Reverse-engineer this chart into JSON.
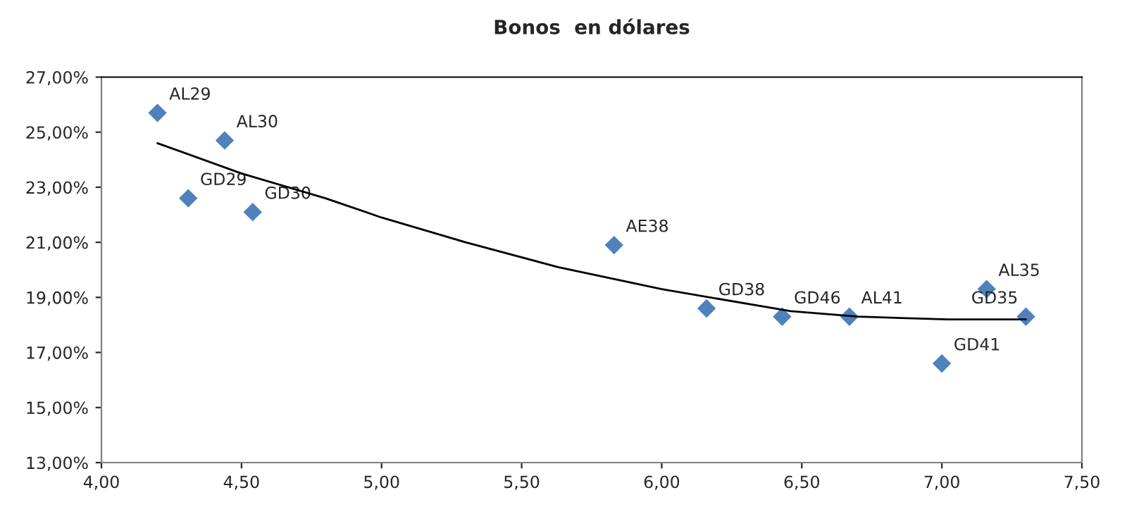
{
  "chart_data": {
    "type": "scatter",
    "title": "Bonos  en dólares",
    "series": [
      {
        "color": "#4f81bd",
        "marker": "diamond",
        "x": [
          4.2,
          4.44,
          4.31,
          4.54,
          5.83,
          6.16,
          6.43,
          6.67,
          7.16,
          7.3,
          7.0
        ],
        "values": [
          25.7,
          24.7,
          22.6,
          22.1,
          20.9,
          18.6,
          18.3,
          18.3,
          19.3,
          18.3,
          16.6
        ]
      },
      {
        "type": "line",
        "color": "#000000",
        "marker": "none",
        "line_style": "solid",
        "x": [
          4.2,
          4.5,
          4.8,
          5.0,
          5.3,
          5.63,
          6.0,
          6.46,
          6.7,
          7.02,
          7.3
        ],
        "values": [
          24.6,
          23.5,
          22.6,
          21.9,
          21.0,
          20.1,
          19.3,
          18.5,
          18.3,
          18.2,
          18.2
        ]
      }
    ],
    "annotations": [
      {
        "text": "AL29",
        "x": 4.2,
        "y": 25.7
      },
      {
        "text": "AL30",
        "x": 4.44,
        "y": 24.7
      },
      {
        "text": "GD29",
        "x": 4.31,
        "y": 22.6
      },
      {
        "text": "GD30",
        "x": 4.54,
        "y": 22.1
      },
      {
        "text": "AE38",
        "x": 5.83,
        "y": 20.9
      },
      {
        "text": "GD38",
        "x": 6.16,
        "y": 18.6
      },
      {
        "text": "GD46",
        "x": 6.43,
        "y": 18.3
      },
      {
        "text": "AL41",
        "x": 6.67,
        "y": 18.3
      },
      {
        "text": "AL35",
        "x": 7.16,
        "y": 19.3
      },
      {
        "text": "GD35",
        "x": 7.3,
        "y": 18.3
      },
      {
        "text": "GD41",
        "x": 7.0,
        "y": 16.6
      }
    ],
    "xlim": [
      4.0,
      7.5
    ],
    "xticks": [
      {
        "value": 4.0,
        "label": "4,00"
      },
      {
        "value": 4.5,
        "label": "4,50"
      },
      {
        "value": 5.0,
        "label": "5,00"
      },
      {
        "value": 5.5,
        "label": "5,50"
      },
      {
        "value": 6.0,
        "label": "6,00"
      },
      {
        "value": 6.5,
        "label": "6,50"
      },
      {
        "value": 7.0,
        "label": "7,00"
      },
      {
        "value": 7.5,
        "label": "7,50"
      }
    ],
    "ylim": [
      13,
      27
    ],
    "yticks": [
      {
        "value": 13,
        "label": "13,00%"
      },
      {
        "value": 15,
        "label": "15,00%"
      },
      {
        "value": 17,
        "label": "17,00%"
      },
      {
        "value": 19,
        "label": "19,00%"
      },
      {
        "value": 21,
        "label": "21,00%"
      },
      {
        "value": 23,
        "label": "23,00%"
      },
      {
        "value": 25,
        "label": "25,00%"
      },
      {
        "value": 27,
        "label": "27,00%"
      }
    ],
    "grid": false,
    "legend": false
  }
}
